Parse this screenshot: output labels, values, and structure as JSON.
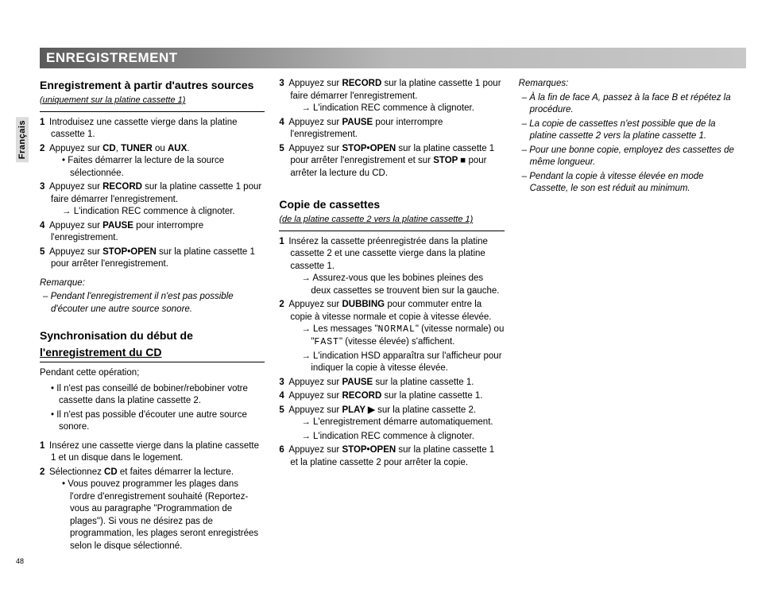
{
  "page": {
    "number": "48",
    "header": "ENREGISTREMENT",
    "language_tab": "Français"
  },
  "col1": {
    "sec1": {
      "head": "Enregistrement à partir d'autres sources",
      "sub": "(uniquement sur la platine cassette 1)",
      "step1": "Introduisez une cassette vierge dans la platine cassette 1.",
      "step2": "Appuyez sur <b>CD</b>, <b>TUNER</b> ou <b>AUX</b>.",
      "step2_b1": "Faites démarrer la lecture de la source sélectionnée.",
      "step3": "Appuyez sur <b>RECORD</b> sur la platine cassette 1 pour faire démarrer l'enregistrement.",
      "step3_a1": "L'indication REC commence à clignoter.",
      "step4": "Appuyez sur <b>PAUSE</b> pour interrompre l'enregistrement.",
      "step5": "Appuyez sur <b>STOP•OPEN</b> sur la platine cassette 1 pour arrêter l'enregistrement.",
      "rem_head": "Remarque:",
      "rem1": "Pendant l'enregistrement il n'est pas possible d'écouter une autre source sonore."
    },
    "sec2": {
      "head1": "Synchronisation du début de",
      "head2": "l'enregistrement du CD",
      "intro": "Pendant cette opération;",
      "b1": "Il n'est pas conseillé de bobiner/rebobiner votre cassette dans la platine cassette 2.",
      "b2": "Il n'est pas possible d'écouter une autre source sonore.",
      "step1": "Insérez une cassette vierge dans la platine cassette 1 et un disque dans le logement.",
      "step2": "Sélectionnez <b>CD</b> et faites démarrer la lecture.",
      "step2_b1": "Vous pouvez programmer les plages dans l'ordre d'enregistrement souhaité (Reportez-vous au paragraphe \"Programmation de plages\"). Si vous ne désirez pas de programmation, les plages seront enregistrées selon le disque sélectionné."
    }
  },
  "col2": {
    "cont": {
      "step3": "Appuyez sur <b>RECORD</b> sur la platine cassette 1 pour faire démarrer l'enregistrement.",
      "step3_a1": "L'indication REC commence à clignoter.",
      "step4": "Appuyez sur <b>PAUSE</b> pour interrompre l'enregistrement.",
      "step5": "Appuyez sur <b>STOP•OPEN</b> sur la platine cassette 1 pour arrêter l'enregistrement et sur <b>STOP ■</b> pour arrêter la lecture du CD."
    },
    "sec3": {
      "head": "Copie de cassettes",
      "sub": "(de la platine cassette 2 vers la platine cassette 1)",
      "step1": "Insérez la cassette préenregistrée dans la platine cassette 2 et une cassette vierge dans la platine cassette 1.",
      "step1_a1": "Assurez-vous que les bobines pleines des deux cassettes se trouvent bien sur la gauche.",
      "step2": "Appuyez sur <b>DUBBING</b> pour commuter entre la copie à vitesse normale et copie à vitesse élevée.",
      "step2_a1": "Les messages \"<span class='lcd'>NORMAL</span>\" (vitesse normale) ou \"<span class='lcd'>FAST</span>\" (vitesse élevée) s'affichent.",
      "step2_a2": "L'indication HSD apparaîtra sur l'afficheur pour indiquer la copie à vitesse élevée.",
      "step3": "Appuyez sur <b>PAUSE</b> sur la platine cassette 1.",
      "step4": "Appuyez sur <b>RECORD</b> sur la platine cassette 1.",
      "step5": "Appuyez sur <b>PLAY ▶</b> sur la platine cassette 2.",
      "step5_a1": "L'enregistrement démarre automatiquement.",
      "step5_a2": "L'indication REC commence à clignoter.",
      "step6": "Appuyez sur <b>STOP•OPEN</b> sur la platine cassette 1 et la platine cassette 2 pour arrêter la copie."
    }
  },
  "col3": {
    "rem_head": "Remarques:",
    "r1": "À la fin de face A, passez à la face B et répétez la procédure.",
    "r2": "La copie de cassettes n'est possible que de la platine cassette 2 vers la platine cassette 1.",
    "r3": "Pour une bonne copie, employez des cassettes de même longueur.",
    "r4": "Pendant la copie à vitesse élevée en mode Cassette, le son est réduit au minimum."
  }
}
